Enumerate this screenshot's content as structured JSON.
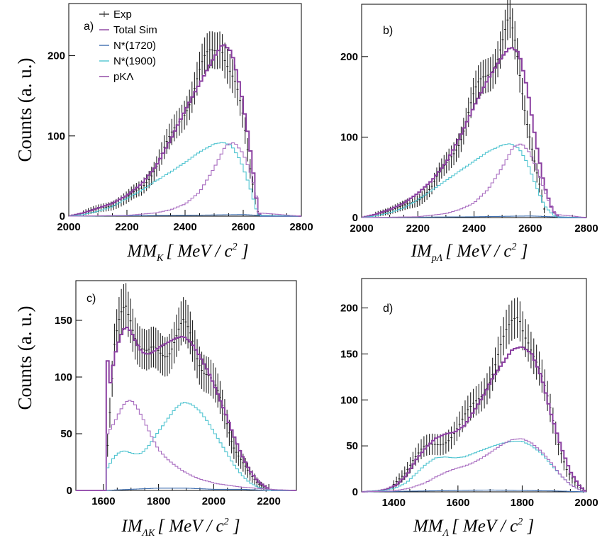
{
  "y_axis_label": "Counts (a. u.)",
  "legend": [
    {
      "label": "Exp",
      "color": "#333333",
      "style": "errorbar"
    },
    {
      "label": "Total Sim",
      "color": "#8a3fa0",
      "style": "line"
    },
    {
      "label": "N*(1720)",
      "color": "#6a8fa0",
      "style": "line"
    },
    {
      "label": "N*(1900)",
      "color": "#4fc4d0",
      "style": "line"
    },
    {
      "label": "pKΛ",
      "color": "#8a3fa0",
      "style": "line"
    }
  ],
  "chart_data": [
    {
      "type": "line",
      "panel_label": "a)",
      "xlabel_main": "MM",
      "xlabel_sub": "K",
      "xlabel_unit": "MeV / c",
      "xlim": [
        2000,
        2800
      ],
      "ylim": [
        0,
        265
      ],
      "xticks": [
        2000,
        2200,
        2400,
        2600,
        2800
      ],
      "xtick_labels": [
        "2000",
        "2200",
        "2400",
        "2600",
        "2800"
      ],
      "yticks": [
        0,
        100,
        200
      ],
      "ytick_labels": [
        "0",
        "100",
        "200"
      ],
      "series": [
        {
          "name": "Exp",
          "x": [
            2050,
            2100,
            2150,
            2200,
            2250,
            2300,
            2350,
            2400,
            2450,
            2500,
            2525,
            2550,
            2575,
            2600,
            2625,
            2650
          ],
          "values": [
            4,
            9,
            14,
            22,
            36,
            62,
            95,
            138,
            175,
            205,
            225,
            195,
            160,
            115,
            55,
            6
          ]
        },
        {
          "name": "Total Sim",
          "x": [
            2000,
            2050,
            2100,
            2150,
            2200,
            2250,
            2300,
            2350,
            2400,
            2450,
            2500,
            2530,
            2560,
            2590,
            2620,
            2640,
            2650,
            2660,
            2800
          ],
          "values": [
            0,
            4,
            10,
            16,
            26,
            40,
            62,
            95,
            132,
            165,
            198,
            215,
            205,
            160,
            95,
            40,
            5,
            0,
            0
          ]
        },
        {
          "name": "N*(1720)",
          "x": [
            2000,
            2400,
            2600,
            2650,
            2800
          ],
          "values": [
            0,
            1,
            2,
            1,
            0
          ]
        },
        {
          "name": "N*(1900)",
          "x": [
            2000,
            2050,
            2100,
            2150,
            2200,
            2250,
            2300,
            2350,
            2400,
            2450,
            2500,
            2530,
            2560,
            2590,
            2620,
            2640,
            2650,
            2660,
            2800
          ],
          "values": [
            0,
            2,
            6,
            12,
            22,
            32,
            44,
            55,
            67,
            80,
            90,
            92,
            88,
            70,
            40,
            15,
            3,
            0,
            0
          ]
        },
        {
          "name": "pKΛ",
          "x": [
            2000,
            2200,
            2300,
            2350,
            2400,
            2450,
            2500,
            2540,
            2570,
            2600,
            2630,
            2645,
            2655,
            2800
          ],
          "values": [
            0,
            1,
            4,
            8,
            15,
            30,
            60,
            88,
            92,
            78,
            50,
            25,
            4,
            0
          ]
        }
      ]
    },
    {
      "type": "line",
      "panel_label": "b)",
      "xlabel_main": "IM",
      "xlabel_sub": "pΛ",
      "xlabel_unit": "MeV / c",
      "xlim": [
        2000,
        2800
      ],
      "ylim": [
        0,
        265
      ],
      "xticks": [
        2000,
        2200,
        2400,
        2600,
        2800
      ],
      "xtick_labels": [
        "2000",
        "2200",
        "2400",
        "2600",
        "2800"
      ],
      "yticks": [
        0,
        100,
        200
      ],
      "ytick_labels": [
        "0",
        "100",
        "200"
      ],
      "series": [
        {
          "name": "Exp",
          "x": [
            2050,
            2100,
            2150,
            2200,
            2250,
            2300,
            2350,
            2400,
            2450,
            2500,
            2525,
            2550,
            2575,
            2600,
            2625,
            2650
          ],
          "values": [
            4,
            9,
            14,
            22,
            38,
            65,
            100,
            145,
            185,
            220,
            235,
            200,
            150,
            105,
            55,
            10
          ]
        },
        {
          "name": "Total Sim",
          "x": [
            2000,
            2050,
            2100,
            2150,
            2200,
            2250,
            2300,
            2350,
            2400,
            2450,
            2500,
            2530,
            2560,
            2590,
            2620,
            2650,
            2680,
            2700,
            2800
          ],
          "values": [
            0,
            4,
            10,
            18,
            30,
            46,
            68,
            100,
            138,
            172,
            200,
            212,
            205,
            160,
            95,
            40,
            8,
            0,
            0
          ]
        },
        {
          "name": "N*(1720)",
          "x": [
            2000,
            2400,
            2600,
            2680,
            2800
          ],
          "values": [
            0,
            1,
            2,
            1,
            0
          ]
        },
        {
          "name": "N*(1900)",
          "x": [
            2000,
            2050,
            2100,
            2150,
            2200,
            2250,
            2300,
            2350,
            2400,
            2450,
            2500,
            2530,
            2560,
            2590,
            2620,
            2650,
            2680,
            2700,
            2800
          ],
          "values": [
            0,
            2,
            6,
            12,
            22,
            34,
            46,
            58,
            70,
            82,
            90,
            92,
            86,
            68,
            40,
            15,
            4,
            0,
            0
          ]
        },
        {
          "name": "pKΛ",
          "x": [
            2000,
            2200,
            2300,
            2350,
            2400,
            2450,
            2500,
            2540,
            2570,
            2600,
            2630,
            2660,
            2690,
            2800
          ],
          "values": [
            0,
            1,
            5,
            10,
            18,
            35,
            62,
            88,
            92,
            80,
            55,
            25,
            4,
            0
          ]
        }
      ]
    },
    {
      "type": "line",
      "panel_label": "c)",
      "xlabel_main": "IM",
      "xlabel_sub": "ΛK",
      "xlabel_unit": "MeV / c",
      "xlim": [
        1500,
        2300
      ],
      "ylim": [
        0,
        185
      ],
      "xticks": [
        1600,
        1800,
        2000,
        2200
      ],
      "xtick_labels": [
        "1600",
        "1800",
        "2000",
        "2200"
      ],
      "yticks": [
        0,
        50,
        100,
        150
      ],
      "ytick_labels": [
        "0",
        "50",
        "100",
        "150"
      ],
      "series": [
        {
          "name": "Exp",
          "x": [
            1615,
            1640,
            1660,
            1680,
            1700,
            1720,
            1740,
            1760,
            1780,
            1800,
            1830,
            1860,
            1890,
            1920,
            1950,
            1980,
            2010,
            2040,
            2070,
            2100,
            2130,
            2160,
            2190
          ],
          "values": [
            40,
            120,
            145,
            165,
            160,
            140,
            125,
            115,
            118,
            122,
            128,
            135,
            140,
            132,
            118,
            105,
            85,
            65,
            42,
            28,
            14,
            6,
            2
          ]
        },
        {
          "name": "Total Sim",
          "x": [
            1500,
            1605,
            1612,
            1625,
            1640,
            1660,
            1680,
            1700,
            1720,
            1740,
            1760,
            1780,
            1800,
            1830,
            1860,
            1890,
            1920,
            1950,
            1980,
            2010,
            2040,
            2070,
            2100,
            2130,
            2160,
            2190,
            2210,
            2300
          ],
          "values": [
            0,
            0,
            120,
            95,
            118,
            135,
            145,
            140,
            130,
            122,
            120,
            122,
            126,
            130,
            134,
            136,
            130,
            118,
            105,
            88,
            70,
            50,
            32,
            18,
            8,
            3,
            0,
            0
          ]
        },
        {
          "name": "N*(1720)",
          "x": [
            1500,
            1605,
            1700,
            1800,
            1900,
            2000,
            2100,
            2200,
            2300
          ],
          "values": [
            0,
            0,
            1,
            2,
            2,
            1,
            1,
            0,
            0
          ]
        },
        {
          "name": "N*(1900)",
          "x": [
            1500,
            1605,
            1615,
            1640,
            1660,
            1680,
            1700,
            1720,
            1740,
            1760,
            1780,
            1800,
            1830,
            1860,
            1890,
            1920,
            1950,
            1980,
            2010,
            2040,
            2070,
            2100,
            2130,
            2160,
            2190,
            2210,
            2300
          ],
          "values": [
            0,
            0,
            20,
            30,
            34,
            35,
            33,
            32,
            33,
            38,
            45,
            52,
            62,
            72,
            78,
            76,
            70,
            60,
            48,
            36,
            24,
            14,
            7,
            3,
            1,
            0,
            0
          ]
        },
        {
          "name": "pKΛ",
          "x": [
            1500,
            1605,
            1615,
            1640,
            1660,
            1680,
            1700,
            1720,
            1740,
            1760,
            1780,
            1800,
            1830,
            1860,
            1890,
            1920,
            1950,
            1980,
            2010,
            2040,
            2070,
            2100,
            2150,
            2200,
            2300
          ],
          "values": [
            0,
            0,
            50,
            60,
            70,
            78,
            80,
            74,
            65,
            55,
            45,
            36,
            28,
            22,
            17,
            13,
            10,
            8,
            6,
            5,
            4,
            3,
            2,
            1,
            0
          ]
        }
      ]
    },
    {
      "type": "line",
      "panel_label": "d)",
      "xlabel_main": "MM",
      "xlabel_sub": "Λ",
      "xlabel_unit": "MeV / c",
      "xlim": [
        1300,
        2000
      ],
      "ylim": [
        0,
        232
      ],
      "xticks": [
        1400,
        1600,
        1800,
        2000
      ],
      "xtick_labels": [
        "1400",
        "1600",
        "1800",
        "2000"
      ],
      "yticks": [
        0,
        50,
        100,
        150,
        200
      ],
      "ytick_labels": [
        "0",
        "50",
        "100",
        "150",
        "200"
      ],
      "series": [
        {
          "name": "Exp",
          "x": [
            1400,
            1430,
            1460,
            1490,
            1520,
            1550,
            1580,
            1610,
            1640,
            1670,
            1700,
            1730,
            1760,
            1790,
            1820,
            1850,
            1880,
            1910,
            1940,
            1970,
            1990
          ],
          "values": [
            8,
            20,
            35,
            45,
            50,
            55,
            62,
            72,
            88,
            108,
            128,
            150,
            170,
            195,
            175,
            135,
            95,
            55,
            25,
            8,
            2
          ]
        },
        {
          "name": "Total Sim",
          "x": [
            1300,
            1350,
            1380,
            1410,
            1440,
            1470,
            1500,
            1530,
            1560,
            1590,
            1620,
            1650,
            1680,
            1710,
            1740,
            1770,
            1800,
            1830,
            1860,
            1890,
            1920,
            1950,
            1980,
            2000
          ],
          "values": [
            0,
            1,
            3,
            8,
            18,
            35,
            48,
            58,
            63,
            65,
            72,
            88,
            105,
            125,
            140,
            155,
            158,
            150,
            125,
            85,
            50,
            22,
            6,
            0
          ]
        },
        {
          "name": "N*(1720)",
          "x": [
            1300,
            1500,
            1700,
            1900,
            2000
          ],
          "values": [
            0,
            1,
            2,
            1,
            0
          ]
        },
        {
          "name": "N*(1900)",
          "x": [
            1300,
            1350,
            1380,
            1410,
            1440,
            1470,
            1500,
            1530,
            1560,
            1590,
            1620,
            1650,
            1680,
            1710,
            1740,
            1770,
            1800,
            1830,
            1860,
            1890,
            1920,
            1950,
            1980,
            2000
          ],
          "values": [
            0,
            1,
            2,
            5,
            10,
            20,
            30,
            37,
            38,
            37,
            38,
            42,
            46,
            50,
            53,
            55,
            55,
            50,
            42,
            30,
            18,
            8,
            2,
            0
          ]
        },
        {
          "name": "pKΛ",
          "x": [
            1300,
            1400,
            1450,
            1500,
            1530,
            1560,
            1590,
            1620,
            1650,
            1680,
            1710,
            1740,
            1770,
            1800,
            1830,
            1860,
            1890,
            1920,
            1950,
            1980,
            2000
          ],
          "values": [
            0,
            1,
            4,
            10,
            16,
            21,
            25,
            28,
            32,
            38,
            45,
            52,
            57,
            58,
            53,
            44,
            32,
            18,
            8,
            2,
            0
          ]
        }
      ]
    }
  ]
}
